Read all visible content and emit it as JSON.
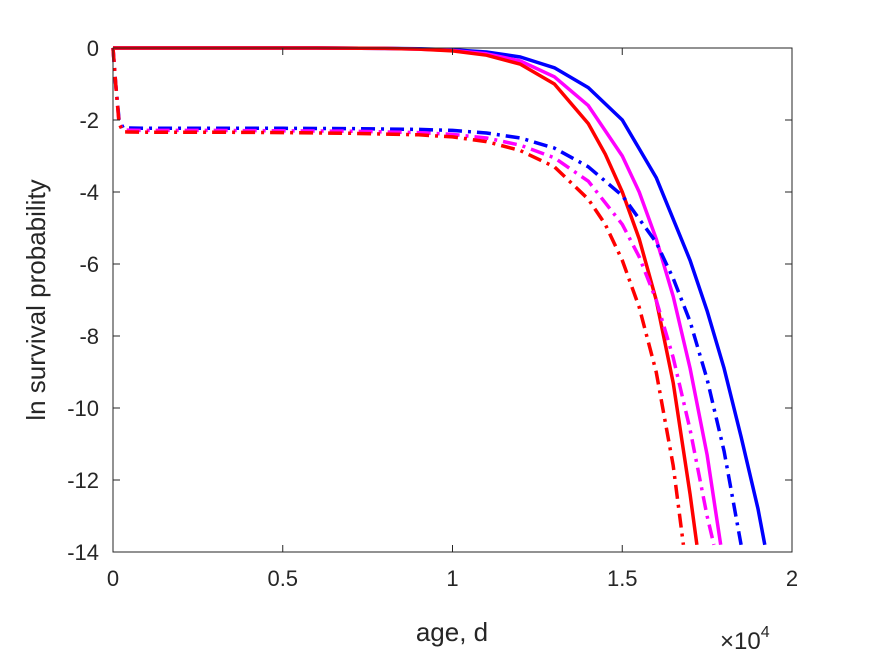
{
  "chart_data": {
    "type": "line",
    "xlabel": "age, d",
    "ylabel": "ln survival probability",
    "x_multiplier": {
      "base": "×10",
      "exponent": "4"
    },
    "xlim": [
      0,
      20000
    ],
    "ylim": [
      -14,
      0
    ],
    "xticks": [
      0,
      5000,
      10000,
      15000,
      20000
    ],
    "xtick_labels": [
      "0",
      "0.5",
      "1",
      "1.5",
      "2"
    ],
    "yticks": [
      0,
      -2,
      -4,
      -6,
      -8,
      -10,
      -12,
      -14
    ],
    "ytick_labels": [
      "0",
      "-2",
      "-4",
      "-6",
      "-8",
      "-10",
      "-12",
      "-14"
    ],
    "grid": false,
    "legend": "none",
    "series": [
      {
        "color": "#0000ff",
        "style": "solid",
        "x": [
          0,
          2000,
          4000,
          6000,
          8000,
          9000,
          10000,
          11000,
          12000,
          13000,
          14000,
          15000,
          16000,
          17000,
          17500,
          18000,
          18500,
          19000,
          19200
        ],
        "y": [
          0,
          0,
          0,
          0,
          -0.01,
          -0.02,
          -0.05,
          -0.11,
          -0.25,
          -0.55,
          -1.1,
          -2.0,
          -3.6,
          -5.9,
          -7.3,
          -8.9,
          -10.8,
          -12.8,
          -13.8
        ]
      },
      {
        "color": "#ff00ff",
        "style": "solid",
        "x": [
          0,
          2000,
          4000,
          6000,
          8000,
          9000,
          10000,
          11000,
          12000,
          13000,
          14000,
          15000,
          15500,
          16000,
          16500,
          17000,
          17500,
          17900
        ],
        "y": [
          0,
          0,
          0,
          0,
          -0.01,
          -0.03,
          -0.07,
          -0.16,
          -0.36,
          -0.8,
          -1.6,
          -3.0,
          -4.0,
          -5.3,
          -6.9,
          -8.9,
          -11.3,
          -13.8
        ]
      },
      {
        "color": "#ff0000",
        "style": "solid",
        "x": [
          0,
          2000,
          4000,
          6000,
          8000,
          9000,
          10000,
          11000,
          12000,
          13000,
          14000,
          14500,
          15000,
          15500,
          16000,
          16500,
          17000,
          17200
        ],
        "y": [
          0,
          0,
          0,
          0,
          -0.01,
          -0.03,
          -0.08,
          -0.2,
          -0.45,
          -1.0,
          -2.1,
          -2.95,
          -4.0,
          -5.3,
          -7.0,
          -9.3,
          -12.4,
          -13.8
        ]
      },
      {
        "color": "#0000ff",
        "style": "dashdot",
        "x": [
          0,
          80,
          180,
          300,
          1000,
          3000,
          5000,
          7000,
          9000,
          10000,
          11000,
          12000,
          13000,
          14000,
          15000,
          16000,
          16500,
          17000,
          17500,
          18000,
          18500
        ],
        "y": [
          0,
          -1.0,
          -2.0,
          -2.22,
          -2.23,
          -2.23,
          -2.23,
          -2.24,
          -2.26,
          -2.29,
          -2.36,
          -2.5,
          -2.78,
          -3.3,
          -4.1,
          -5.4,
          -6.4,
          -7.6,
          -9.2,
          -11.2,
          -13.8
        ]
      },
      {
        "color": "#ff00ff",
        "style": "dashdot",
        "x": [
          0,
          80,
          180,
          300,
          1000,
          3000,
          5000,
          7000,
          9000,
          10000,
          11000,
          12000,
          13000,
          14000,
          15000,
          15500,
          16000,
          16500,
          17000,
          17500,
          17700
        ],
        "y": [
          0,
          -1.0,
          -2.1,
          -2.28,
          -2.29,
          -2.29,
          -2.3,
          -2.31,
          -2.35,
          -2.4,
          -2.5,
          -2.7,
          -3.05,
          -3.7,
          -4.9,
          -5.8,
          -7.0,
          -8.6,
          -10.6,
          -13.0,
          -13.8
        ]
      },
      {
        "color": "#ff0000",
        "style": "dashdot",
        "x": [
          0,
          80,
          180,
          300,
          1000,
          3000,
          5000,
          7000,
          9000,
          10000,
          11000,
          12000,
          13000,
          14000,
          14500,
          15000,
          15500,
          16000,
          16500,
          16800
        ],
        "y": [
          0,
          -1.0,
          -2.1,
          -2.33,
          -2.34,
          -2.34,
          -2.35,
          -2.37,
          -2.41,
          -2.47,
          -2.6,
          -2.85,
          -3.3,
          -4.2,
          -4.9,
          -5.9,
          -7.2,
          -9.0,
          -11.6,
          -13.8
        ]
      }
    ]
  }
}
